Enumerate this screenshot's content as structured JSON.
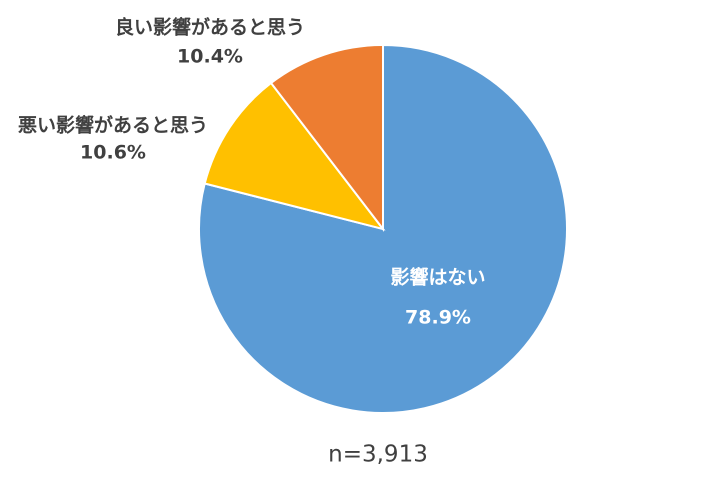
{
  "chart_data": {
    "type": "pie",
    "categories": [
      "影響はない",
      "悪い影響があると思う",
      "良い影響があると思う"
    ],
    "values": [
      78.9,
      10.6,
      10.4
    ],
    "value_labels": [
      "78.9%",
      "10.6%",
      "10.4%"
    ],
    "colors": [
      "#5b9bd5",
      "#ffc000",
      "#ed7d31"
    ],
    "annotation": "n=3,913"
  }
}
